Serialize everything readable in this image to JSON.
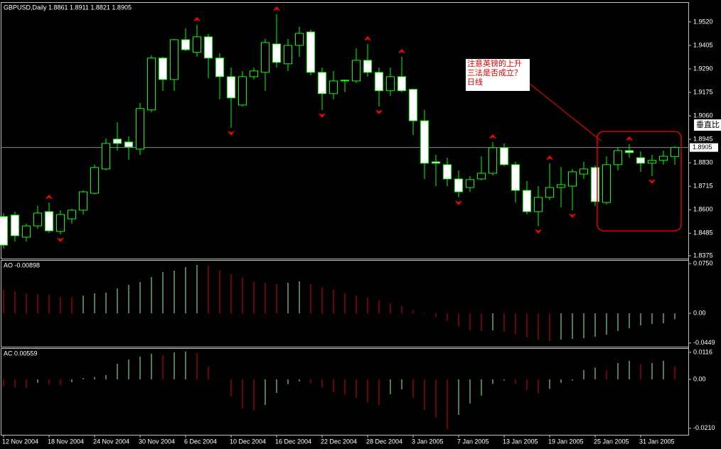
{
  "chart_data": [
    {
      "type": "candlestick",
      "title": "GBPUSD,Daily  1.8861 1.8911 1.8821 1.8905",
      "categories": [
        "12 Nov 2004",
        null,
        null,
        null,
        "18 Nov 2004",
        null,
        null,
        null,
        "24 Nov 2004",
        null,
        null,
        null,
        "30 Nov 2004",
        null,
        null,
        null,
        "6 Dec 2004",
        null,
        null,
        null,
        "10 Dec 2004",
        null,
        null,
        null,
        "16 Dec 2004",
        null,
        null,
        null,
        "22 Dec 2004",
        null,
        null,
        null,
        "28 Dec 2004",
        null,
        null,
        null,
        "3 Jan 2005",
        null,
        null,
        null,
        "7 Jan 2005",
        null,
        null,
        null,
        "13 Jan 2005",
        null,
        null,
        null,
        "19 Jan 2005",
        null,
        null,
        null,
        "25 Jan 2005",
        null,
        null,
        null,
        "31 Jan 2005",
        null,
        null,
        null
      ],
      "open": [
        1.8567,
        1.8574,
        1.8466,
        1.8521,
        1.8591,
        1.8494,
        1.8556,
        1.8598,
        1.8681,
        1.88,
        1.8946,
        1.8932,
        1.8897,
        1.9089,
        1.9343,
        1.9238,
        1.9433,
        1.9371,
        1.9447,
        1.9343,
        1.9252,
        1.9113,
        1.9252,
        1.9273,
        1.9412,
        1.9315,
        1.9405,
        1.9471,
        1.9273,
        1.9169,
        1.9235,
        1.9231,
        1.9332,
        1.9273,
        1.9183,
        1.9252,
        1.919,
        1.9036,
        1.8835,
        1.8821,
        1.8751,
        1.8709,
        1.8751,
        1.8779,
        1.8904,
        1.8821,
        1.8695,
        1.8591,
        1.8661,
        1.8709,
        1.8716,
        1.8775,
        1.8807,
        1.8636,
        1.8821,
        1.889,
        1.8855,
        1.8828,
        1.8842,
        1.8861
      ],
      "high": [
        1.8584,
        1.8591,
        1.8532,
        1.8619,
        1.8636,
        1.8598,
        1.8605,
        1.8695,
        1.8821,
        1.8949,
        1.9029,
        1.896,
        1.9123,
        1.9357,
        1.935,
        1.9437,
        1.9489,
        1.9506,
        1.9461,
        1.9367,
        1.9297,
        1.928,
        1.9297,
        1.9437,
        1.9558,
        1.9437,
        1.9496,
        1.9482,
        1.9297,
        1.928,
        1.9238,
        1.9391,
        1.9412,
        1.9297,
        1.9297,
        1.935,
        1.9193,
        1.9089,
        1.8869,
        1.8855,
        1.8793,
        1.8765,
        1.8862,
        1.8932,
        1.8925,
        1.8835,
        1.8741,
        1.8716,
        1.8828,
        1.881,
        1.88,
        1.8835,
        1.8817,
        1.8862,
        1.8904,
        1.8922,
        1.8887,
        1.8869,
        1.889,
        1.8911
      ],
      "low": [
        1.841,
        1.8445,
        1.8445,
        1.8507,
        1.8487,
        1.848,
        1.8532,
        1.8577,
        1.8675,
        1.8793,
        1.889,
        1.8845,
        1.8869,
        1.9078,
        1.9183,
        1.9183,
        1.9377,
        1.935,
        1.9245,
        1.9141,
        1.9002,
        1.9106,
        1.9238,
        1.9183,
        1.9297,
        1.928,
        1.935,
        1.9259,
        1.9089,
        1.9141,
        1.9176,
        1.9221,
        1.9252,
        1.9106,
        1.9158,
        1.9176,
        1.8967,
        1.8751,
        1.8716,
        1.8716,
        1.8661,
        1.8688,
        1.8744,
        1.8768,
        1.8814,
        1.8636,
        1.8577,
        1.8521,
        1.8647,
        1.8612,
        1.8598,
        1.8751,
        1.8619,
        1.8626,
        1.8793,
        1.8855,
        1.8786,
        1.8765,
        1.8821,
        1.8821
      ],
      "close": [
        1.8427,
        1.8473,
        1.8521,
        1.8584,
        1.8497,
        1.8577,
        1.8598,
        1.8688,
        1.8807,
        1.8925,
        1.8925,
        1.8908,
        1.9096,
        1.9343,
        1.9238,
        1.9433,
        1.9384,
        1.9447,
        1.9343,
        1.9252,
        1.9148,
        1.9252,
        1.928,
        1.9419,
        1.9322,
        1.9405,
        1.9464,
        1.9273,
        1.9169,
        1.9231,
        1.9231,
        1.9332,
        1.9273,
        1.9183,
        1.9252,
        1.9183,
        1.9036,
        1.8828,
        1.8828,
        1.8751,
        1.8688,
        1.8748,
        1.8779,
        1.8904,
        1.8821,
        1.8695,
        1.8591,
        1.8661,
        1.8709,
        1.8723,
        1.8786,
        1.88,
        1.864,
        1.8821,
        1.889,
        1.888,
        1.8828,
        1.8842,
        1.8862,
        1.8905
      ],
      "color": "#00ff00",
      "ylim": [
        1.8361,
        1.9617
      ],
      "yticks": [
        {
          "value": 1.952,
          "label": "1.9520"
        },
        {
          "value": 1.9405,
          "label": "1.9405"
        },
        {
          "value": 1.929,
          "label": "1.9290"
        },
        {
          "value": 1.9175,
          "label": "1.9175"
        },
        {
          "value": 1.906,
          "label": "1.9060"
        },
        {
          "value": 1.8945,
          "label": "1.8945"
        },
        {
          "value": 1.883,
          "label": "1.8830"
        },
        {
          "value": 1.8715,
          "label": "1.8715"
        },
        {
          "value": 1.86,
          "label": "1.8600"
        },
        {
          "value": 1.8485,
          "label": "1.8485"
        },
        {
          "value": 1.8375,
          "label": "1.8375"
        }
      ],
      "price_line": {
        "value": 1.8905,
        "label": "1.8905"
      },
      "fractals": {
        "up": [
          4,
          17,
          24,
          32,
          35,
          43,
          48,
          55
        ],
        "down": [
          5,
          20,
          28,
          33,
          40,
          47,
          50,
          57
        ],
        "color": "#ff0000"
      },
      "annotation": [
        "注意英镑的上升",
        "三法是否成立？",
        "日线"
      ],
      "side_label": "垂直比"
    },
    {
      "type": "bar",
      "title": "AO  -0.00898",
      "values": [
        0.0354,
        0.0332,
        0.03,
        0.0289,
        0.0279,
        0.0247,
        0.0236,
        0.0268,
        0.03,
        0.0311,
        0.0375,
        0.0429,
        0.0472,
        0.0547,
        0.0622,
        0.0643,
        0.0697,
        0.0729,
        0.0718,
        0.0654,
        0.0589,
        0.0536,
        0.0482,
        0.0461,
        0.0439,
        0.0461,
        0.0482,
        0.0439,
        0.0397,
        0.0354,
        0.0311,
        0.0268,
        0.0236,
        0.0193,
        0.015,
        0.0107,
        0.0054,
        -0.001,
        -0.0054,
        -0.0118,
        -0.0204,
        -0.0257,
        -0.0268,
        -0.0257,
        -0.0279,
        -0.0311,
        -0.0364,
        -0.0397,
        -0.0418,
        -0.0397,
        -0.0386,
        -0.0375,
        -0.0354,
        -0.0322,
        -0.0268,
        -0.0225,
        -0.0182,
        -0.0161,
        -0.015,
        -0.00898
      ],
      "up_color": "#9dff9d",
      "down_color": "#e00000",
      "ylim": [
        -0.0504,
        0.0804
      ],
      "yticks": [
        {
          "value": 0.075,
          "label": "0.0750"
        },
        {
          "value": 0,
          "label": "0.00"
        },
        {
          "value": -0.0449,
          "label": "-0.0449"
        }
      ]
    },
    {
      "type": "bar",
      "title": "AC  0.00559",
      "values": [
        -0.003,
        -0.0035,
        -0.0038,
        -0.0015,
        -0.0021,
        -0.0025,
        -0.0012,
        0.0005,
        0.001,
        0.0018,
        0.0067,
        0.0085,
        0.0098,
        0.011,
        0.0104,
        0.0116,
        0.0119,
        0.0113,
        0.0055,
        -0.0002,
        -0.0073,
        -0.0125,
        -0.0134,
        -0.011,
        -0.0058,
        -0.0021,
        -0.0009,
        -0.0018,
        -0.0034,
        -0.0055,
        -0.0067,
        -0.0079,
        -0.0098,
        -0.011,
        -0.0064,
        -0.0043,
        -0.0079,
        -0.0131,
        -0.0165,
        -0.0214,
        -0.0153,
        -0.0104,
        -0.007,
        -0.002,
        -0.0005,
        -0.002,
        -0.0045,
        -0.006,
        -0.004,
        -0.0015,
        -0.0005,
        0.004,
        0.005,
        0.004,
        0.007,
        0.008,
        0.0065,
        0.007,
        0.008,
        0.00559
      ],
      "up_color": "#9dff9d",
      "down_color": "#e00000",
      "ylim": [
        -0.0238,
        0.0134
      ],
      "yticks": [
        {
          "value": 0.0116,
          "label": "0.0116"
        },
        {
          "value": 0,
          "label": "0.00"
        },
        {
          "value": -0.021,
          "label": "-0.0210"
        }
      ]
    }
  ]
}
